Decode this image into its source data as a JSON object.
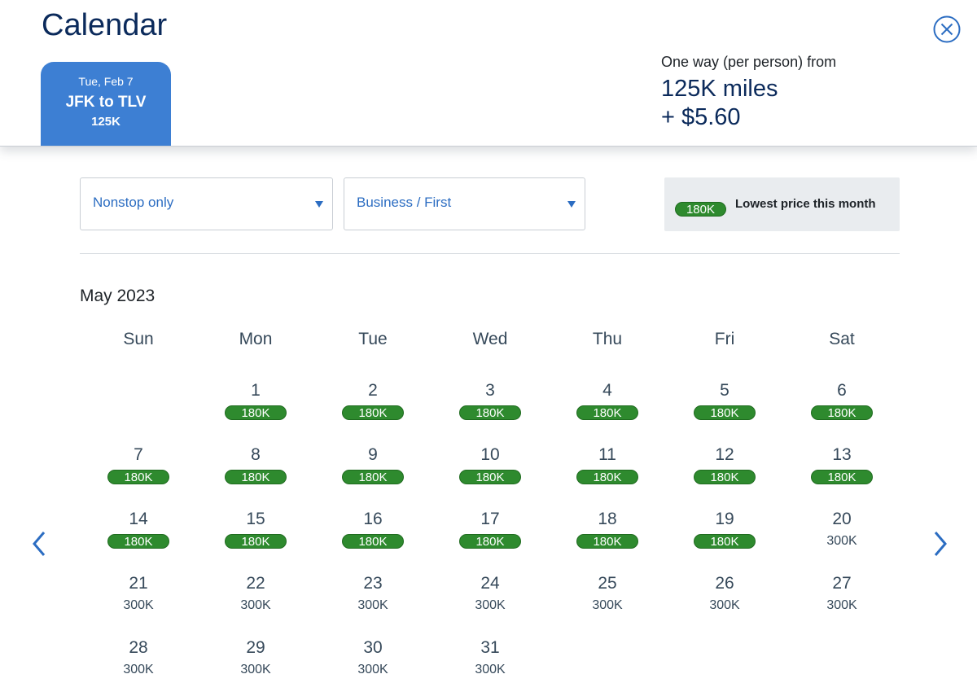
{
  "header": {
    "title": "Calendar",
    "close_icon": "close-circle-icon",
    "trip_tab": {
      "date": "Tue, Feb 7",
      "route": "JFK to TLV",
      "price": "125K"
    },
    "price_summary": {
      "label": "One way (per person) from",
      "miles": "125K miles",
      "cash": "+ $5.60"
    }
  },
  "filters": {
    "stops": {
      "value": "Nonstop only"
    },
    "cabin": {
      "value": "Business / First"
    },
    "legend": {
      "badge": "180K",
      "text": "Lowest price this month"
    }
  },
  "calendar": {
    "month": "May 2023",
    "weekdays": [
      "Sun",
      "Mon",
      "Tue",
      "Wed",
      "Thu",
      "Fri",
      "Sat"
    ],
    "prev_icon": "chevron-left-icon",
    "next_icon": "chevron-right-icon",
    "days": [
      {
        "day": "1",
        "price": "180K",
        "lowest": true
      },
      {
        "day": "2",
        "price": "180K",
        "lowest": true
      },
      {
        "day": "3",
        "price": "180K",
        "lowest": true
      },
      {
        "day": "4",
        "price": "180K",
        "lowest": true
      },
      {
        "day": "5",
        "price": "180K",
        "lowest": true
      },
      {
        "day": "6",
        "price": "180K",
        "lowest": true
      },
      {
        "day": "7",
        "price": "180K",
        "lowest": true
      },
      {
        "day": "8",
        "price": "180K",
        "lowest": true
      },
      {
        "day": "9",
        "price": "180K",
        "lowest": true
      },
      {
        "day": "10",
        "price": "180K",
        "lowest": true
      },
      {
        "day": "11",
        "price": "180K",
        "lowest": true
      },
      {
        "day": "12",
        "price": "180K",
        "lowest": true
      },
      {
        "day": "13",
        "price": "180K",
        "lowest": true
      },
      {
        "day": "14",
        "price": "180K",
        "lowest": true
      },
      {
        "day": "15",
        "price": "180K",
        "lowest": true
      },
      {
        "day": "16",
        "price": "180K",
        "lowest": true
      },
      {
        "day": "17",
        "price": "180K",
        "lowest": true
      },
      {
        "day": "18",
        "price": "180K",
        "lowest": true
      },
      {
        "day": "19",
        "price": "180K",
        "lowest": true
      },
      {
        "day": "20",
        "price": "300K",
        "lowest": false
      },
      {
        "day": "21",
        "price": "300K",
        "lowest": false
      },
      {
        "day": "22",
        "price": "300K",
        "lowest": false
      },
      {
        "day": "23",
        "price": "300K",
        "lowest": false
      },
      {
        "day": "24",
        "price": "300K",
        "lowest": false
      },
      {
        "day": "25",
        "price": "300K",
        "lowest": false
      },
      {
        "day": "26",
        "price": "300K",
        "lowest": false
      },
      {
        "day": "27",
        "price": "300K",
        "lowest": false
      },
      {
        "day": "28",
        "price": "300K",
        "lowest": false
      },
      {
        "day": "29",
        "price": "300K",
        "lowest": false
      },
      {
        "day": "30",
        "price": "300K",
        "lowest": false
      },
      {
        "day": "31",
        "price": "300K",
        "lowest": false
      }
    ]
  },
  "colors": {
    "accent_blue": "#3d7fd3",
    "link_blue": "#2c6dc2",
    "title_navy": "#0b2a5b",
    "lowest_green": "#2e8a2e"
  }
}
